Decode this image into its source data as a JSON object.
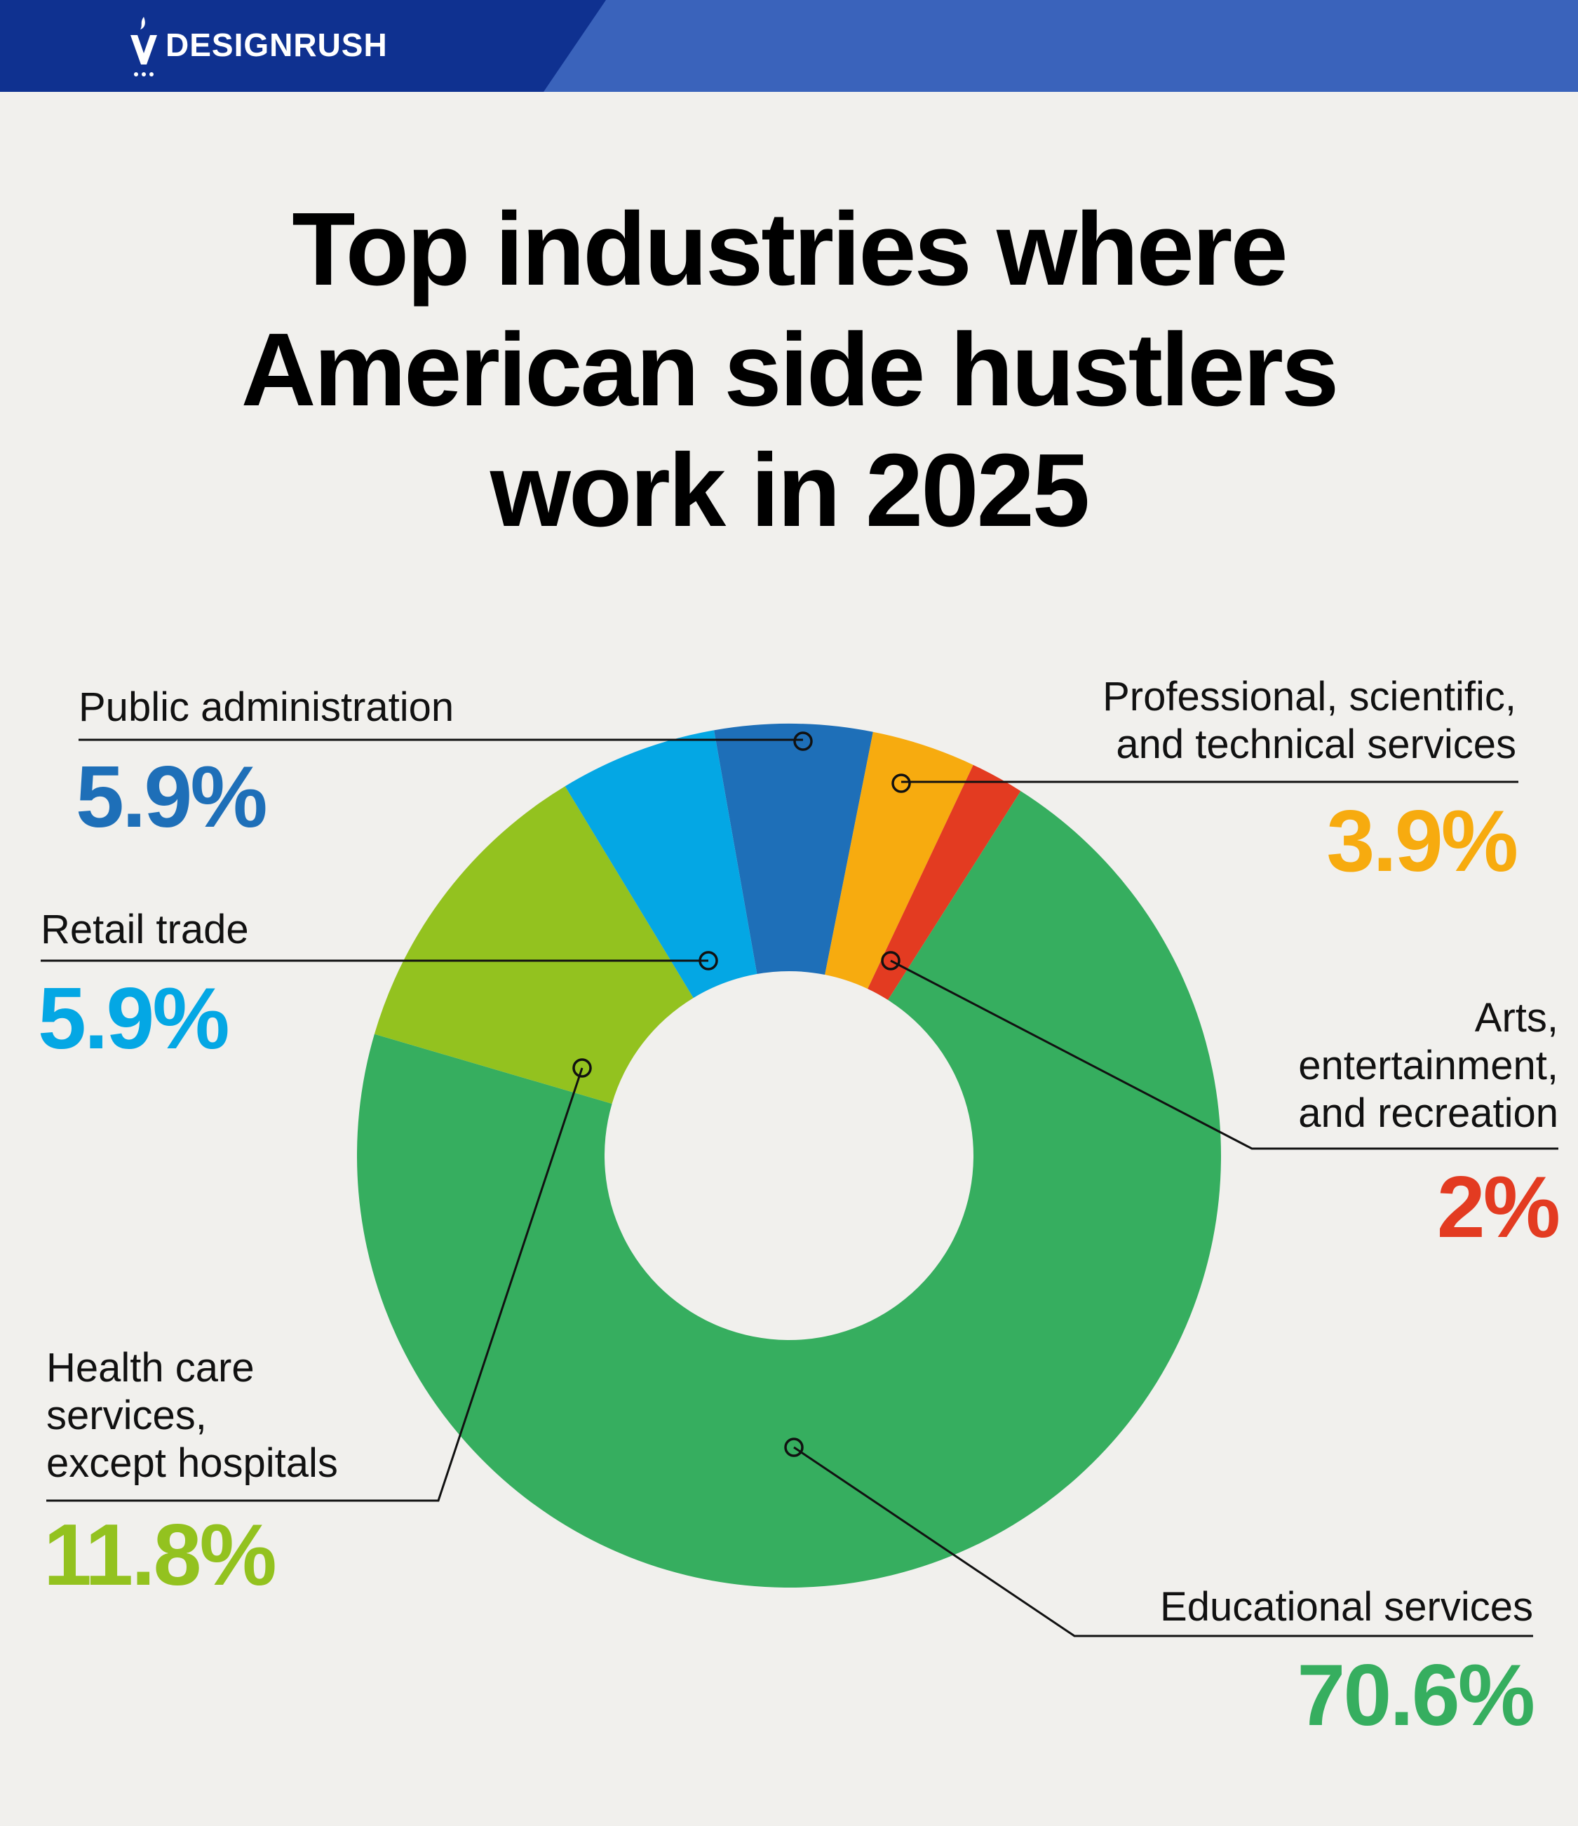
{
  "brand": {
    "name": "DESIGNRUSH"
  },
  "title_lines": [
    "Top industries where",
    "American side hustlers",
    "work in 2025"
  ],
  "colors": {
    "header_dark": "#0f3190",
    "header_light": "#3a63bb",
    "background": "#f1f0ed"
  },
  "chart_data": {
    "type": "pie",
    "variant": "donut",
    "unit": "%",
    "slices": [
      {
        "label": "Public administration",
        "value": 5.9,
        "display": "5.9%",
        "color": "#1e6fb8"
      },
      {
        "label": "Professional, scientific, and technical services",
        "value": 3.9,
        "display": "3.9%",
        "color": "#f7ab0f"
      },
      {
        "label": "Arts, entertainment, and recreation",
        "value": 2.0,
        "display": "2%",
        "color": "#e33b21"
      },
      {
        "label": "Educational services",
        "value": 70.6,
        "display": "70.6%",
        "color": "#36ae5f"
      },
      {
        "label": "Health care services, except hospitals",
        "value": 11.8,
        "display": "11.8%",
        "color": "#93c21f"
      },
      {
        "label": "Retail trade",
        "value": 5.9,
        "display": "5.9%",
        "color": "#04a7e4"
      }
    ],
    "labels": {
      "public_admin": {
        "lines": [
          "Public administration"
        ],
        "value": "5.9%"
      },
      "professional": {
        "lines": [
          "Professional, scientific,",
          "and technical services"
        ],
        "value": "3.9%"
      },
      "retail": {
        "lines": [
          "Retail trade"
        ],
        "value": "5.9%"
      },
      "arts": {
        "lines": [
          "Arts,",
          "entertainment,",
          "and recreation"
        ],
        "value": "2%"
      },
      "health": {
        "lines": [
          "Health care",
          "services,",
          "except hospitals"
        ],
        "value": "11.8%"
      },
      "education": {
        "lines": [
          "Educational services"
        ],
        "value": "70.6%"
      }
    }
  }
}
